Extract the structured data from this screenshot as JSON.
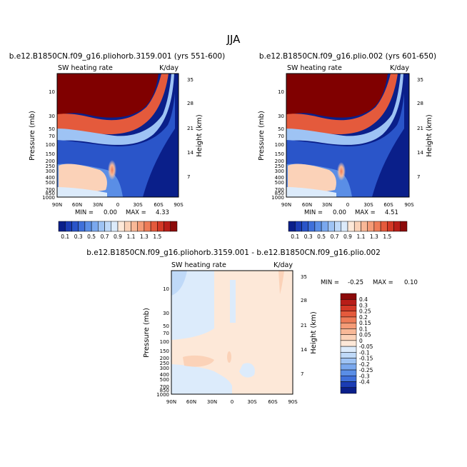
{
  "figure_title": "JJA",
  "colors": {
    "warm_palette": [
      "#ffffff",
      "#fde8d8",
      "#fbd2b8",
      "#f8b897",
      "#f49b77",
      "#ee7c58",
      "#e45a3c",
      "#d33826",
      "#b81d18",
      "#8c0a0a",
      "#800000"
    ],
    "cool_palette": [
      "#ffffff",
      "#dcebfb",
      "#bfd9f8",
      "#9ec3f4",
      "#7aa8ee",
      "#5a8ee6",
      "#3f70da",
      "#2a55c9",
      "#1b3cb4",
      "#0f2a9b",
      "#0a1f8a"
    ]
  },
  "chart_data": [
    {
      "type": "heatmap",
      "title": "b.e12.B1850CN.f09_g16.pliohorb.3159.001 (yrs 551-600)",
      "left_label": "SW heating rate",
      "right_label": "K/day",
      "ylabel": "Pressure (mb)",
      "y2label": "Height (km)",
      "x_ticks": [
        "90N",
        "60N",
        "30N",
        "0",
        "30S",
        "60S",
        "90S"
      ],
      "y_ticks": [
        "10",
        "30",
        "50",
        "70",
        "100",
        "150",
        "200",
        "250",
        "300",
        "400",
        "500",
        "700",
        "850",
        "1000"
      ],
      "y2_ticks": [
        "35",
        "28",
        "21",
        "14",
        "7"
      ],
      "min_label": "MIN =",
      "min_value": "0.00",
      "max_label": "MAX =",
      "max_value": "4.33",
      "xlim": [
        90,
        -90
      ],
      "ylim_mb": [
        1000,
        5
      ],
      "colorbar_levels": [
        "0.1",
        "0.3",
        "0.5",
        "0.7",
        "0.9",
        "1.1",
        "1.3",
        "1.5"
      ],
      "colorbar_colors": [
        "#0a1f8a",
        "#1b3cb4",
        "#2a55c9",
        "#3f70da",
        "#5a8ee6",
        "#7aa8ee",
        "#9ec3f4",
        "#bfd9f8",
        "#dcebfb",
        "#fde8d8",
        "#fbd2b8",
        "#f8b897",
        "#f49b77",
        "#ee7c58",
        "#e45a3c",
        "#d33826",
        "#b81d18",
        "#8c0a0a"
      ]
    },
    {
      "type": "heatmap",
      "title": "b.e12.B1850CN.f09_g16.plio.002 (yrs 601-650)",
      "left_label": "SW heating rate",
      "right_label": "K/day",
      "ylabel": "Pressure (mb)",
      "y2label": "Height (km)",
      "x_ticks": [
        "90N",
        "60N",
        "30N",
        "0",
        "30S",
        "60S",
        "90S"
      ],
      "y_ticks": [
        "10",
        "30",
        "50",
        "70",
        "100",
        "150",
        "200",
        "250",
        "300",
        "400",
        "500",
        "700",
        "850",
        "1000"
      ],
      "y2_ticks": [
        "35",
        "28",
        "21",
        "14",
        "7"
      ],
      "min_label": "MIN =",
      "min_value": "0.00",
      "max_label": "MAX =",
      "max_value": "4.51",
      "xlim": [
        90,
        -90
      ],
      "ylim_mb": [
        1000,
        5
      ],
      "colorbar_levels": [
        "0.1",
        "0.3",
        "0.5",
        "0.7",
        "0.9",
        "1.1",
        "1.3",
        "1.5"
      ],
      "colorbar_colors": [
        "#0a1f8a",
        "#1b3cb4",
        "#2a55c9",
        "#3f70da",
        "#5a8ee6",
        "#7aa8ee",
        "#9ec3f4",
        "#bfd9f8",
        "#dcebfb",
        "#fde8d8",
        "#fbd2b8",
        "#f8b897",
        "#f49b77",
        "#ee7c58",
        "#e45a3c",
        "#d33826",
        "#b81d18",
        "#8c0a0a"
      ]
    },
    {
      "type": "heatmap",
      "title": "b.e12.B1850CN.f09_g16.pliohorb.3159.001 - b.e12.B1850CN.f09_g16.plio.002",
      "left_label": "SW heating rate",
      "right_label": "K/day",
      "ylabel": "Pressure (mb)",
      "y2label": "Height (km)",
      "x_ticks": [
        "90N",
        "60N",
        "30N",
        "0",
        "30S",
        "60S",
        "90S"
      ],
      "y_ticks": [
        "10",
        "30",
        "50",
        "70",
        "100",
        "150",
        "200",
        "250",
        "300",
        "400",
        "500",
        "700",
        "850",
        "1000"
      ],
      "y2_ticks": [
        "35",
        "28",
        "21",
        "14",
        "7"
      ],
      "min_label": "MIN =",
      "min_value": "-0.25",
      "max_label": "MAX =",
      "max_value": "0.10",
      "xlim": [
        90,
        -90
      ],
      "ylim_mb": [
        1000,
        5
      ],
      "colorbar_levels": [
        "0.4",
        "0.3",
        "0.25",
        "0.2",
        "0.15",
        "0.1",
        "0.05",
        "0",
        "-0.05",
        "-0.1",
        "-0.15",
        "-0.2",
        "-0.25",
        "-0.3",
        "-0.4"
      ],
      "colorbar_colors": [
        "#8c0a0a",
        "#b81d18",
        "#d33826",
        "#e45a3c",
        "#ee7c58",
        "#f49b77",
        "#f8b897",
        "#fbd2b8",
        "#fde8d8",
        "#dcebfb",
        "#bfd9f8",
        "#9ec3f4",
        "#7aa8ee",
        "#5a8ee6",
        "#3f70da",
        "#1b3cb4",
        "#0a1f8a"
      ]
    }
  ]
}
